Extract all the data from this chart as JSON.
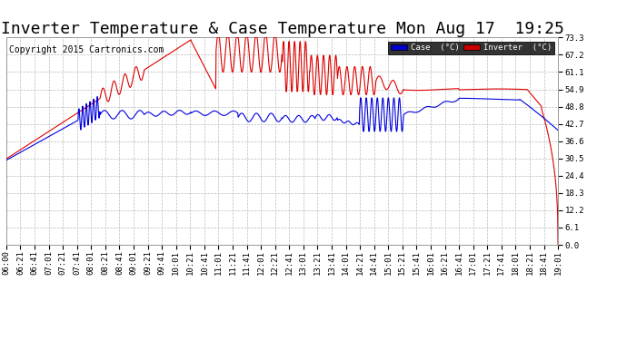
{
  "title": "Inverter Temperature & Case Temperature Mon Aug 17  19:25",
  "copyright": "Copyright 2015 Cartronics.com",
  "yticks": [
    0.0,
    6.1,
    12.2,
    18.3,
    24.4,
    30.5,
    36.6,
    42.7,
    48.8,
    54.9,
    61.1,
    67.2,
    73.3
  ],
  "ylim": [
    0.0,
    73.3
  ],
  "x_labels": [
    "06:00",
    "06:21",
    "06:41",
    "07:01",
    "07:21",
    "07:41",
    "08:01",
    "08:21",
    "08:41",
    "09:01",
    "09:21",
    "09:41",
    "10:01",
    "10:21",
    "10:41",
    "11:01",
    "11:21",
    "11:41",
    "12:01",
    "12:21",
    "12:41",
    "13:01",
    "13:21",
    "13:41",
    "14:01",
    "14:21",
    "14:41",
    "15:01",
    "15:21",
    "15:41",
    "16:01",
    "16:21",
    "16:41",
    "17:01",
    "17:21",
    "17:41",
    "18:01",
    "18:21",
    "18:41",
    "19:01"
  ],
  "bg_color": "#ffffff",
  "plot_bg_color": "#ffffff",
  "grid_color": "#bbbbbb",
  "case_color": "#0000dd",
  "inverter_color": "#dd0000",
  "legend_case_bg": "#0000cc",
  "legend_inverter_bg": "#cc0000",
  "title_fontsize": 13,
  "tick_fontsize": 6.5,
  "copyright_fontsize": 7
}
